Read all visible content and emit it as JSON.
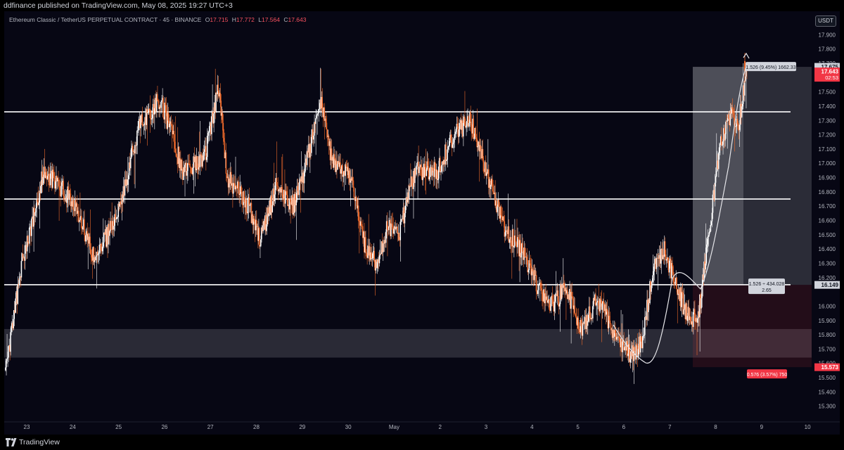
{
  "header": {
    "publish_line": "ddfinance published on TradingView.com, May 08, 2025 19:27 UTC+3"
  },
  "legend": {
    "symbol": "Ethereum Classic / TetherUS PERPETUAL CONTRACT · 45 · BINANCE",
    "open_label": "O",
    "open": "17.715",
    "high_label": "H",
    "high": "17.772",
    "low_label": "L",
    "low": "17.564",
    "close_label": "C",
    "close": "17.643"
  },
  "currency_button": "USDT",
  "footer": {
    "brand": "TradingView"
  },
  "colors": {
    "background": "#070714",
    "up": "#ffffff",
    "down": "#f06a2b",
    "level_line": "#ffffff",
    "current_price": "#f23645",
    "profit_zone": "#b2b5be",
    "loss_zone": "#f23645"
  },
  "chart_data": {
    "type": "candlestick",
    "title": "Ethereum Classic / TetherUS PERPETUAL CONTRACT · 45 · BINANCE",
    "timeframe": "45",
    "x_ticks": [
      "23",
      "24",
      "25",
      "26",
      "27",
      "28",
      "29",
      "30",
      "May",
      "2",
      "3",
      "4",
      "5",
      "6",
      "7",
      "8",
      "9",
      "10"
    ],
    "y_ticks": [
      "17.900",
      "17.800",
      "17.700",
      "17.500",
      "17.400",
      "17.300",
      "17.200",
      "17.100",
      "17.000",
      "16.900",
      "16.800",
      "16.700",
      "16.600",
      "16.500",
      "16.400",
      "16.300",
      "16.200",
      "16.000",
      "15.900",
      "15.800",
      "15.700",
      "15.600",
      "15.500",
      "15.400",
      "15.300"
    ],
    "ylim": [
      15.2,
      18.0
    ],
    "grid": false,
    "horizontal_levels": [
      17.36,
      16.75,
      16.15
    ],
    "support_zone": [
      15.64,
      15.84
    ],
    "path_anchors": [
      [
        0,
        15.55
      ],
      [
        3,
        16.3
      ],
      [
        7,
        16.95
      ],
      [
        12,
        16.75
      ],
      [
        16,
        16.35
      ],
      [
        20,
        16.6
      ],
      [
        24,
        17.25
      ],
      [
        28,
        17.45
      ],
      [
        32,
        16.95
      ],
      [
        36,
        17.05
      ],
      [
        38.5,
        17.55
      ],
      [
        40,
        16.9
      ],
      [
        44,
        16.7
      ],
      [
        46,
        16.45
      ],
      [
        49,
        16.85
      ],
      [
        52,
        16.7
      ],
      [
        54,
        16.95
      ],
      [
        57,
        17.45
      ],
      [
        59,
        17.0
      ],
      [
        62,
        16.95
      ],
      [
        65,
        16.4
      ],
      [
        67,
        16.3
      ],
      [
        69,
        16.55
      ],
      [
        71,
        16.5
      ],
      [
        74,
        16.95
      ],
      [
        78,
        16.95
      ],
      [
        81,
        17.2
      ],
      [
        84,
        17.3
      ],
      [
        86,
        17.05
      ],
      [
        88,
        16.8
      ],
      [
        90,
        16.55
      ],
      [
        93,
        16.4
      ],
      [
        96,
        16.15
      ],
      [
        99,
        16.0
      ],
      [
        101,
        16.15
      ],
      [
        104,
        15.85
      ],
      [
        107,
        16.05
      ],
      [
        110,
        15.8
      ],
      [
        113,
        15.65
      ],
      [
        115,
        15.75
      ],
      [
        117,
        16.3
      ],
      [
        119,
        16.4
      ],
      [
        121,
        16.15
      ],
      [
        123,
        15.95
      ],
      [
        125,
        15.9
      ],
      [
        127,
        16.5
      ],
      [
        129,
        17.1
      ],
      [
        131,
        17.35
      ],
      [
        132.5,
        17.3
      ],
      [
        134,
        17.7
      ]
    ],
    "day_candles": 8.1,
    "axis_labels": [
      {
        "value": 17.675,
        "text": "17.675",
        "bg": "#d1d4dc",
        "fg": "#131722"
      },
      {
        "value": 17.643,
        "text": "17.643",
        "sub": "02:53",
        "bg": "#f23645",
        "fg": "#ffffff"
      },
      {
        "value": 16.149,
        "text": "16.149",
        "bg": "#d1d4dc",
        "fg": "#131722"
      },
      {
        "value": 15.573,
        "text": "15.573",
        "bg": "#f23645",
        "fg": "#ffffff"
      }
    ],
    "position": {
      "entry": 16.149,
      "target": 17.675,
      "stop": 15.573,
      "target_label": "1.526 (9.45%) 1662.33",
      "ratio_label_line1": "1.526 ÷ 434.028",
      "ratio_label_line2": "2.65",
      "stop_label": "0.576 (3.57%) 750"
    },
    "drawn_path": "hand-drawn projection curve near the right edge"
  }
}
